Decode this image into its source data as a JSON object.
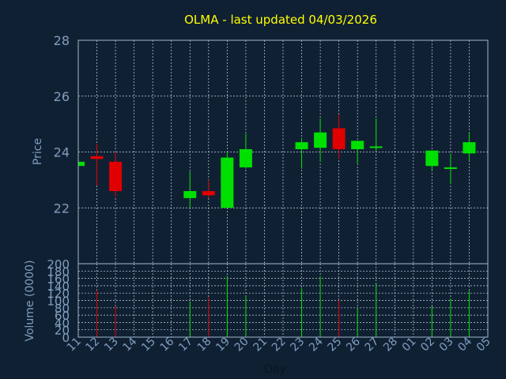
{
  "colors": {
    "background": "#102033",
    "up": "#00e000",
    "down": "#e00000",
    "axis": "#9fb7cf",
    "title": "#ffff00",
    "text": "#7f9fbf"
  },
  "chart_data": [
    {
      "type": "candlestick",
      "title": "OLMA - last updated 04/03/2026",
      "ylabel": "Price",
      "ylim": [
        20.0,
        28.0
      ],
      "yticks": [
        22,
        24,
        26,
        28
      ],
      "grid": true,
      "categories": [
        "11",
        "12",
        "13",
        "14",
        "15",
        "16",
        "17",
        "18",
        "19",
        "20",
        "21",
        "22",
        "23",
        "24",
        "25",
        "26",
        "27",
        "28",
        "01",
        "02",
        "03",
        "04",
        "05"
      ],
      "candles": [
        {
          "day": "11",
          "open": 23.5,
          "high": 23.65,
          "low": 23.5,
          "close": 23.65
        },
        {
          "day": "12",
          "open": 23.85,
          "high": 24.3,
          "low": 22.8,
          "close": 23.75
        },
        {
          "day": "13",
          "open": 23.65,
          "high": 24.0,
          "low": 22.4,
          "close": 22.6
        },
        {
          "day": "17",
          "open": 22.35,
          "high": 23.3,
          "low": 22.0,
          "close": 22.6
        },
        {
          "day": "18",
          "open": 22.6,
          "high": 23.0,
          "low": 22.35,
          "close": 22.45
        },
        {
          "day": "19",
          "open": 22.0,
          "high": 24.0,
          "low": 22.0,
          "close": 23.8
        },
        {
          "day": "20",
          "open": 23.45,
          "high": 24.65,
          "low": 23.4,
          "close": 24.1
        },
        {
          "day": "23",
          "open": 24.1,
          "high": 24.5,
          "low": 23.4,
          "close": 24.35
        },
        {
          "day": "24",
          "open": 24.15,
          "high": 25.2,
          "low": 23.65,
          "close": 24.7
        },
        {
          "day": "25",
          "open": 24.85,
          "high": 25.35,
          "low": 23.75,
          "close": 24.1
        },
        {
          "day": "26",
          "open": 24.1,
          "high": 24.4,
          "low": 23.6,
          "close": 24.4
        },
        {
          "day": "27",
          "open": 24.15,
          "high": 25.2,
          "low": 24.05,
          "close": 24.2
        },
        {
          "day": "02",
          "open": 23.5,
          "high": 24.05,
          "low": 23.35,
          "close": 24.05
        },
        {
          "day": "03",
          "open": 23.4,
          "high": 23.95,
          "low": 22.85,
          "close": 23.45
        },
        {
          "day": "04",
          "open": 23.95,
          "high": 24.7,
          "low": 23.7,
          "close": 24.35
        }
      ]
    },
    {
      "type": "bar",
      "ylabel": "Volume (0000)",
      "xlabel": "Day",
      "ylim": [
        0,
        200
      ],
      "yticks": [
        0,
        20,
        40,
        60,
        80,
        100,
        120,
        140,
        160,
        180,
        200
      ],
      "grid": true,
      "categories": [
        "11",
        "12",
        "13",
        "14",
        "15",
        "16",
        "17",
        "18",
        "19",
        "20",
        "21",
        "22",
        "23",
        "24",
        "25",
        "26",
        "27",
        "28",
        "01",
        "02",
        "03",
        "04",
        "05"
      ],
      "bars": [
        {
          "day": "12",
          "value": 128,
          "dir": "down"
        },
        {
          "day": "13",
          "value": 83,
          "dir": "down"
        },
        {
          "day": "17",
          "value": 97,
          "dir": "up"
        },
        {
          "day": "18",
          "value": 108,
          "dir": "down"
        },
        {
          "day": "19",
          "value": 167,
          "dir": "up"
        },
        {
          "day": "20",
          "value": 113,
          "dir": "up"
        },
        {
          "day": "23",
          "value": 133,
          "dir": "up"
        },
        {
          "day": "24",
          "value": 166,
          "dir": "up"
        },
        {
          "day": "25",
          "value": 101,
          "dir": "down"
        },
        {
          "day": "26",
          "value": 77,
          "dir": "up"
        },
        {
          "day": "27",
          "value": 147,
          "dir": "up"
        },
        {
          "day": "02",
          "value": 84,
          "dir": "up"
        },
        {
          "day": "03",
          "value": 106,
          "dir": "up"
        },
        {
          "day": "04",
          "value": 126,
          "dir": "up"
        }
      ]
    }
  ]
}
